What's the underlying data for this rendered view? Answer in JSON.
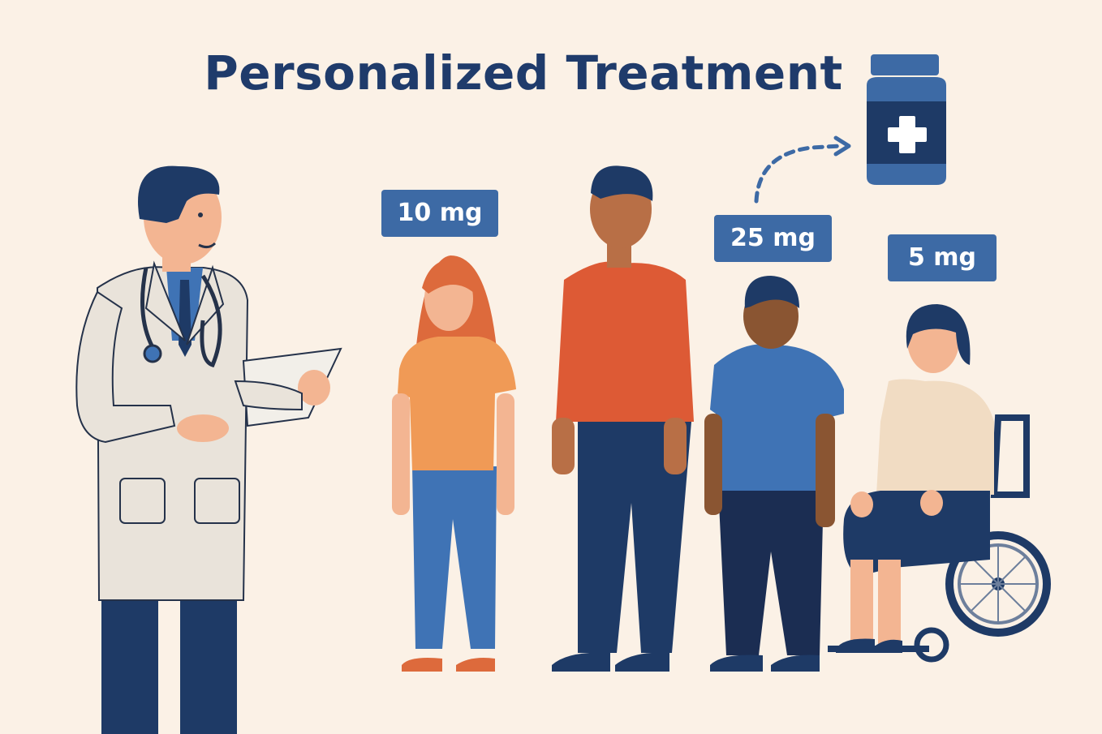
{
  "title": "Personalized Treatment",
  "doses": {
    "girl": "10 mg",
    "boy": "25 mg",
    "woman": "5 mg"
  },
  "colors": {
    "background": "#fbf1e6",
    "title": "#1f3b6b",
    "dose_badge": "#3d6aa5",
    "navy": "#1e3a66",
    "orange_shirt": "#f09a56",
    "red_shirt": "#dd5a35",
    "blue_shirt": "#3f73b5",
    "beige_shirt": "#f1dcc3"
  },
  "icons": [
    "doctor",
    "stethoscope",
    "clipboard",
    "girl",
    "man",
    "boy",
    "woman-in-wheelchair",
    "medicine-bottle",
    "plus-icon",
    "dashed-arrow"
  ]
}
